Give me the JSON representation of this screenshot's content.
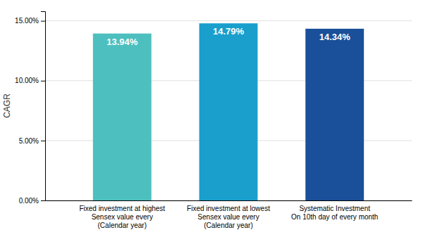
{
  "chart_data": {
    "type": "bar",
    "categories": [
      "Fixed investment at highest\nSensex value every\n(Calendar year)",
      "Fixed investment at lowest\nSensex value every\n(Calendar year)",
      "Systematic Investment\nOn 10th day of every month"
    ],
    "values": [
      13.94,
      14.79,
      14.34
    ],
    "value_labels": [
      "13.94%",
      "14.79%",
      "14.34%"
    ],
    "data_labels": true,
    "colors": [
      "#4dbfbf",
      "#1a9fcc",
      "#1a4f99"
    ],
    "ylabel": "CAGR",
    "ylim": [
      0,
      15.8
    ],
    "yticks": [
      {
        "value": 0.0,
        "label": "0.00%"
      },
      {
        "value": 5.0,
        "label": "5.00%"
      },
      {
        "value": 10.0,
        "label": "10.00%"
      },
      {
        "value": 15.0,
        "label": "15.00%"
      }
    ],
    "grid": true
  }
}
